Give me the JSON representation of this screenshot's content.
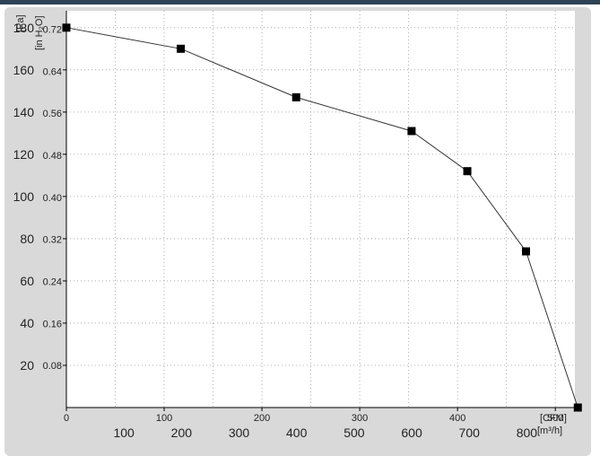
{
  "chart_data": {
    "type": "line",
    "x_axes": {
      "top": {
        "label": "[CFM]",
        "ticks": [
          "0",
          "100",
          "200",
          "300",
          "400",
          "500"
        ],
        "values": [
          0,
          100,
          200,
          300,
          400,
          500
        ],
        "range": [
          0,
          520
        ]
      },
      "bottom": {
        "label": "[m³/h]",
        "ticks": [
          "100",
          "200",
          "300",
          "400",
          "500",
          "600",
          "700",
          "800"
        ],
        "values": [
          100,
          200,
          300,
          400,
          500,
          600,
          700,
          800
        ],
        "range": [
          0,
          883.5
        ]
      }
    },
    "y_axes": {
      "left": {
        "label": "[Pa]",
        "ticks": [
          "20",
          "40",
          "60",
          "80",
          "100",
          "120",
          "140",
          "160",
          "180"
        ],
        "values": [
          20,
          40,
          60,
          80,
          100,
          120,
          140,
          160,
          180
        ],
        "range": [
          0,
          188
        ]
      },
      "right": {
        "label": "[in H₂O]",
        "ticks": [
          "0.08",
          "0.16",
          "0.24",
          "0.32",
          "0.40",
          "0.48",
          "0.56",
          "0.64",
          "0.72"
        ],
        "values": [
          0.08,
          0.16,
          0.24,
          0.32,
          0.4,
          0.48,
          0.56,
          0.64,
          0.72
        ],
        "range": [
          0,
          0.755
        ]
      }
    },
    "grid": true,
    "series": [
      {
        "x": [
          0,
          117,
          235,
          353,
          410,
          470,
          523
        ],
        "y": [
          180,
          170,
          147,
          131,
          112,
          74,
          0
        ],
        "x_units": "CFM",
        "y_units": "Pa",
        "marker": "square",
        "color": "#000000"
      }
    ]
  }
}
